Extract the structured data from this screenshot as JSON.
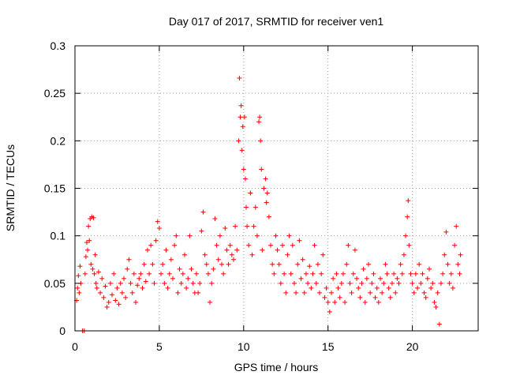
{
  "chart_data": {
    "type": "scatter",
    "title": "Day 017 of 2017, SRMTID for receiver ven1",
    "xlabel": "GPS time / hours",
    "ylabel": "SRMTID / TECUs",
    "xlim": [
      0,
      23.9
    ],
    "ylim": [
      0,
      0.3
    ],
    "xticks": [
      0,
      5,
      10,
      15,
      20
    ],
    "xtick_labels": [
      "0",
      "5",
      "10",
      "15",
      "20"
    ],
    "yticks": [
      0,
      0.05,
      0.1,
      0.15,
      0.2,
      0.25,
      0.3
    ],
    "ytick_labels": [
      "0",
      "0.05",
      "0.1",
      "0.15",
      "0.2",
      "0.25",
      "0.3"
    ],
    "grid": true,
    "marker": "+",
    "color": "#ff0000",
    "series": [
      {
        "name": "SRMTID",
        "points": [
          [
            0.1,
            0.032
          ],
          [
            0.15,
            0.045
          ],
          [
            0.2,
            0.058
          ],
          [
            0.25,
            0.04
          ],
          [
            0.3,
            0.068
          ],
          [
            0.35,
            0.05
          ],
          [
            0.45,
            0.0
          ],
          [
            0.55,
            0.0
          ],
          [
            0.6,
            0.06
          ],
          [
            0.65,
            0.078
          ],
          [
            0.7,
            0.093
          ],
          [
            0.75,
            0.085
          ],
          [
            0.8,
            0.11
          ],
          [
            0.85,
            0.095
          ],
          [
            0.9,
            0.118
          ],
          [
            0.95,
            0.07
          ],
          [
            1.0,
            0.12
          ],
          [
            1.05,
            0.065
          ],
          [
            1.1,
            0.119
          ],
          [
            1.15,
            0.06
          ],
          [
            1.2,
            0.08
          ],
          [
            1.25,
            0.05
          ],
          [
            1.3,
            0.045
          ],
          [
            1.4,
            0.062
          ],
          [
            1.5,
            0.04
          ],
          [
            1.6,
            0.055
          ],
          [
            1.7,
            0.035
          ],
          [
            1.8,
            0.047
          ],
          [
            1.9,
            0.025
          ],
          [
            2.0,
            0.03
          ],
          [
            2.1,
            0.05
          ],
          [
            2.2,
            0.038
          ],
          [
            2.3,
            0.06
          ],
          [
            2.4,
            0.032
          ],
          [
            2.5,
            0.045
          ],
          [
            2.6,
            0.028
          ],
          [
            2.7,
            0.05
          ],
          [
            2.8,
            0.04
          ],
          [
            2.9,
            0.055
          ],
          [
            3.0,
            0.035
          ],
          [
            3.1,
            0.065
          ],
          [
            3.2,
            0.075
          ],
          [
            3.3,
            0.05
          ],
          [
            3.4,
            0.04
          ],
          [
            3.5,
            0.06
          ],
          [
            3.6,
            0.03
          ],
          [
            3.7,
            0.048
          ],
          [
            3.8,
            0.055
          ],
          [
            3.9,
            0.06
          ],
          [
            4.0,
            0.045
          ],
          [
            4.1,
            0.07
          ],
          [
            4.2,
            0.052
          ],
          [
            4.3,
            0.085
          ],
          [
            4.4,
            0.06
          ],
          [
            4.5,
            0.09
          ],
          [
            4.6,
            0.07
          ],
          [
            4.7,
            0.05
          ],
          [
            4.8,
            0.095
          ],
          [
            4.9,
            0.115
          ],
          [
            5.0,
            0.108
          ],
          [
            5.1,
            0.06
          ],
          [
            5.2,
            0.07
          ],
          [
            5.3,
            0.05
          ],
          [
            5.4,
            0.085
          ],
          [
            5.5,
            0.045
          ],
          [
            5.6,
            0.06
          ],
          [
            5.7,
            0.075
          ],
          [
            5.8,
            0.055
          ],
          [
            5.9,
            0.09
          ],
          [
            6.0,
            0.1
          ],
          [
            6.1,
            0.04
          ],
          [
            6.2,
            0.065
          ],
          [
            6.3,
            0.05
          ],
          [
            6.4,
            0.06
          ],
          [
            6.5,
            0.08
          ],
          [
            6.6,
            0.045
          ],
          [
            6.7,
            0.055
          ],
          [
            6.8,
            0.1
          ],
          [
            6.9,
            0.065
          ],
          [
            7.0,
            0.05
          ],
          [
            7.1,
            0.04
          ],
          [
            7.2,
            0.06
          ],
          [
            7.3,
            0.04
          ],
          [
            7.4,
            0.05
          ],
          [
            7.5,
            0.105
          ],
          [
            7.6,
            0.125
          ],
          [
            7.7,
            0.08
          ],
          [
            7.8,
            0.07
          ],
          [
            7.9,
            0.06
          ],
          [
            8.0,
            0.03
          ],
          [
            8.1,
            0.05
          ],
          [
            8.2,
            0.065
          ],
          [
            8.3,
            0.118
          ],
          [
            8.4,
            0.09
          ],
          [
            8.5,
            0.075
          ],
          [
            8.6,
            0.1
          ],
          [
            8.7,
            0.07
          ],
          [
            8.8,
            0.06
          ],
          [
            8.9,
            0.108
          ],
          [
            9.0,
            0.085
          ],
          [
            9.1,
            0.07
          ],
          [
            9.2,
            0.09
          ],
          [
            9.3,
            0.08
          ],
          [
            9.4,
            0.075
          ],
          [
            9.5,
            0.11
          ],
          [
            9.6,
            0.085
          ],
          [
            9.7,
            0.2
          ],
          [
            9.75,
            0.266
          ],
          [
            9.8,
            0.225
          ],
          [
            9.85,
            0.237
          ],
          [
            9.9,
            0.19
          ],
          [
            9.95,
            0.215
          ],
          [
            10.0,
            0.17
          ],
          [
            10.05,
            0.225
          ],
          [
            10.1,
            0.16
          ],
          [
            10.15,
            0.13
          ],
          [
            10.2,
            0.11
          ],
          [
            10.3,
            0.09
          ],
          [
            10.4,
            0.145
          ],
          [
            10.5,
            0.08
          ],
          [
            10.6,
            0.11
          ],
          [
            10.7,
            0.13
          ],
          [
            10.8,
            0.1
          ],
          [
            10.9,
            0.22
          ],
          [
            10.95,
            0.225
          ],
          [
            11.0,
            0.2
          ],
          [
            11.05,
            0.17
          ],
          [
            11.1,
            0.085
          ],
          [
            11.2,
            0.15
          ],
          [
            11.3,
            0.16
          ],
          [
            11.35,
            0.135
          ],
          [
            11.4,
            0.145
          ],
          [
            11.5,
            0.12
          ],
          [
            11.6,
            0.09
          ],
          [
            11.7,
            0.07
          ],
          [
            11.8,
            0.06
          ],
          [
            11.9,
            0.1
          ],
          [
            12.0,
            0.085
          ],
          [
            12.1,
            0.07
          ],
          [
            12.2,
            0.05
          ],
          [
            12.3,
            0.09
          ],
          [
            12.4,
            0.06
          ],
          [
            12.5,
            0.04
          ],
          [
            12.6,
            0.08
          ],
          [
            12.7,
            0.1
          ],
          [
            12.8,
            0.06
          ],
          [
            12.9,
            0.09
          ],
          [
            13.0,
            0.05
          ],
          [
            13.1,
            0.04
          ],
          [
            13.2,
            0.07
          ],
          [
            13.3,
            0.095
          ],
          [
            13.4,
            0.055
          ],
          [
            13.5,
            0.075
          ],
          [
            13.6,
            0.04
          ],
          [
            13.7,
            0.06
          ],
          [
            13.8,
            0.05
          ],
          [
            13.9,
            0.068
          ],
          [
            14.0,
            0.045
          ],
          [
            14.1,
            0.06
          ],
          [
            14.2,
            0.09
          ],
          [
            14.3,
            0.05
          ],
          [
            14.4,
            0.07
          ],
          [
            14.5,
            0.04
          ],
          [
            14.6,
            0.06
          ],
          [
            14.7,
            0.08
          ],
          [
            14.8,
            0.035
          ],
          [
            14.9,
            0.045
          ],
          [
            15.0,
            0.03
          ],
          [
            15.1,
            0.02
          ],
          [
            15.2,
            0.04
          ],
          [
            15.3,
            0.055
          ],
          [
            15.4,
            0.03
          ],
          [
            15.5,
            0.06
          ],
          [
            15.6,
            0.045
          ],
          [
            15.7,
            0.035
          ],
          [
            15.8,
            0.05
          ],
          [
            15.9,
            0.06
          ],
          [
            16.0,
            0.03
          ],
          [
            16.1,
            0.07
          ],
          [
            16.2,
            0.09
          ],
          [
            16.3,
            0.05
          ],
          [
            16.4,
            0.04
          ],
          [
            16.5,
            0.06
          ],
          [
            16.6,
            0.085
          ],
          [
            16.7,
            0.055
          ],
          [
            16.8,
            0.045
          ],
          [
            16.9,
            0.035
          ],
          [
            17.0,
            0.05
          ],
          [
            17.1,
            0.065
          ],
          [
            17.2,
            0.03
          ],
          [
            17.3,
            0.055
          ],
          [
            17.4,
            0.07
          ],
          [
            17.5,
            0.04
          ],
          [
            17.6,
            0.05
          ],
          [
            17.7,
            0.06
          ],
          [
            17.8,
            0.035
          ],
          [
            17.9,
            0.045
          ],
          [
            18.0,
            0.03
          ],
          [
            18.1,
            0.055
          ],
          [
            18.2,
            0.04
          ],
          [
            18.3,
            0.05
          ],
          [
            18.4,
            0.07
          ],
          [
            18.5,
            0.06
          ],
          [
            18.6,
            0.045
          ],
          [
            18.7,
            0.035
          ],
          [
            18.8,
            0.05
          ],
          [
            18.9,
            0.06
          ],
          [
            19.0,
            0.04
          ],
          [
            19.1,
            0.055
          ],
          [
            19.2,
            0.05
          ],
          [
            19.3,
            0.07
          ],
          [
            19.4,
            0.06
          ],
          [
            19.5,
            0.08
          ],
          [
            19.6,
            0.1
          ],
          [
            19.7,
            0.12
          ],
          [
            19.75,
            0.137
          ],
          [
            19.8,
            0.09
          ],
          [
            19.9,
            0.06
          ],
          [
            20.0,
            0.05
          ],
          [
            20.1,
            0.04
          ],
          [
            20.2,
            0.06
          ],
          [
            20.3,
            0.045
          ],
          [
            20.4,
            0.07
          ],
          [
            20.5,
            0.05
          ],
          [
            20.6,
            0.06
          ],
          [
            20.7,
            0.04
          ],
          [
            20.8,
            0.035
          ],
          [
            20.9,
            0.055
          ],
          [
            21.0,
            0.065
          ],
          [
            21.1,
            0.045
          ],
          [
            21.2,
            0.05
          ],
          [
            21.3,
            0.03
          ],
          [
            21.4,
            0.025
          ],
          [
            21.5,
            0.04
          ],
          [
            21.6,
            0.007
          ],
          [
            21.7,
            0.05
          ],
          [
            21.8,
            0.06
          ],
          [
            21.9,
            0.08
          ],
          [
            22.0,
            0.104
          ],
          [
            22.1,
            0.07
          ],
          [
            22.2,
            0.05
          ],
          [
            22.3,
            0.06
          ],
          [
            22.4,
            0.045
          ],
          [
            22.5,
            0.09
          ],
          [
            22.6,
            0.11
          ],
          [
            22.7,
            0.07
          ],
          [
            22.8,
            0.06
          ],
          [
            22.85,
            0.08
          ]
        ]
      }
    ]
  }
}
